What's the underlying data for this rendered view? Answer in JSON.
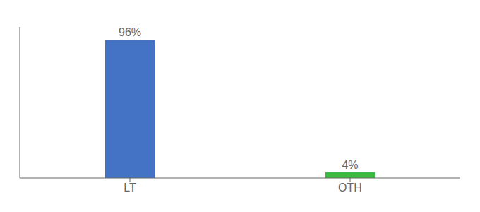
{
  "chart_data": {
    "type": "bar",
    "categories": [
      "LT",
      "OTH"
    ],
    "values": [
      96,
      4
    ],
    "value_labels": [
      "96%",
      "4%"
    ],
    "colors": [
      "#4472c4",
      "#3cb943"
    ],
    "ylim": [
      0,
      105
    ],
    "yticks": [],
    "tick_labels": "x",
    "data_labels": true,
    "grid": false
  }
}
